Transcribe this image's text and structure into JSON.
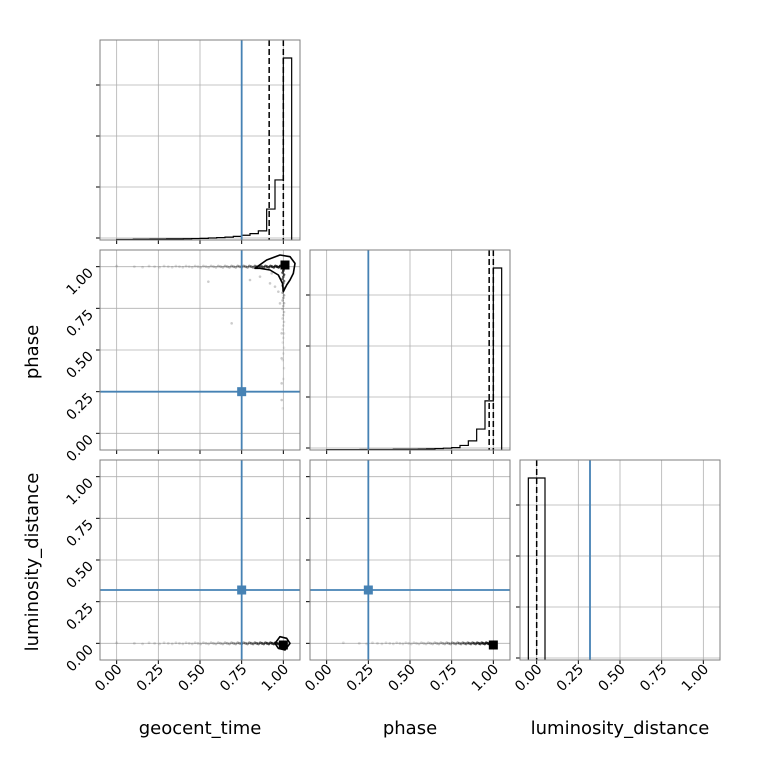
{
  "chart_data": {
    "type": "corner",
    "parameters": [
      "geocent_time",
      "phase",
      "luminosity_distance"
    ],
    "axis_labels": {
      "x": [
        "geocent_time",
        "phase",
        "luminosity_distance"
      ],
      "y": [
        "",
        "phase",
        "luminosity_distance"
      ]
    },
    "range": [
      -0.1,
      1.1
    ],
    "ticks": [
      0.0,
      0.25,
      0.5,
      0.75,
      1.0
    ],
    "tick_labels": [
      "0.00",
      "0.25",
      "0.50",
      "0.75",
      "1.00"
    ],
    "truths": {
      "geocent_time": 0.75,
      "phase": 0.25,
      "luminosity_distance": 0.32
    },
    "truth_color": "#4682b4",
    "sample_color": "#000000",
    "grid": true,
    "histograms": {
      "geocent_time": {
        "bin_edges": [
          0.0,
          0.05,
          0.1,
          0.15,
          0.2,
          0.25,
          0.3,
          0.35,
          0.4,
          0.45,
          0.5,
          0.55,
          0.6,
          0.65,
          0.7,
          0.75,
          0.8,
          0.85,
          0.9,
          0.95,
          1.0,
          1.05
        ],
        "values": [
          0.003,
          0.003,
          0.004,
          0.004,
          0.005,
          0.005,
          0.006,
          0.006,
          0.007,
          0.008,
          0.009,
          0.011,
          0.013,
          0.016,
          0.02,
          0.026,
          0.035,
          0.05,
          0.17,
          0.33,
          1.0
        ],
        "quantiles": [
          0.915,
          1.0
        ]
      },
      "phase": {
        "bin_edges": [
          0.0,
          0.05,
          0.1,
          0.15,
          0.2,
          0.25,
          0.3,
          0.35,
          0.4,
          0.45,
          0.5,
          0.55,
          0.6,
          0.65,
          0.7,
          0.75,
          0.8,
          0.85,
          0.9,
          0.95,
          1.0,
          1.05
        ],
        "values": [
          0.002,
          0.002,
          0.002,
          0.002,
          0.003,
          0.003,
          0.003,
          0.003,
          0.004,
          0.004,
          0.004,
          0.005,
          0.006,
          0.008,
          0.01,
          0.013,
          0.025,
          0.05,
          0.115,
          0.27,
          1.0
        ],
        "quantiles": [
          0.975,
          1.0
        ]
      },
      "luminosity_distance": {
        "bin_edges": [
          -0.05,
          0.0,
          0.05
        ],
        "values": [
          1.0,
          1.0
        ],
        "quantiles": [
          0.0
        ]
      }
    },
    "scatter": {
      "phase_vs_geocent_time": {
        "dense_line": {
          "y": 1.0,
          "x_from": 0.0,
          "x_to": 1.0
        },
        "dense_column": {
          "x": 1.0,
          "y_from": 0.15,
          "y_to": 1.0
        },
        "scattered_points": [
          [
            0.55,
            0.91
          ],
          [
            0.69,
            0.66
          ],
          [
            0.8,
            0.92
          ],
          [
            0.86,
            0.94
          ],
          [
            0.92,
            0.9
          ],
          [
            0.95,
            0.88
          ],
          [
            0.97,
            0.85
          ],
          [
            0.99,
            0.6
          ],
          [
            0.99,
            0.45
          ],
          [
            0.99,
            0.3
          ],
          [
            0.99,
            0.2
          ],
          [
            0.98,
            0.78
          ],
          [
            0.93,
            0.96
          ]
        ],
        "peak": [
          1.01,
          1.01
        ],
        "contour": [
          [
            0.83,
            0.99
          ],
          [
            0.9,
            1.04
          ],
          [
            0.98,
            1.07
          ],
          [
            1.04,
            1.06
          ],
          [
            1.07,
            1.02
          ],
          [
            1.06,
            0.96
          ],
          [
            1.04,
            0.92
          ],
          [
            1.02,
            0.89
          ],
          [
            1.0,
            0.85
          ],
          [
            0.995,
            0.9
          ],
          [
            0.97,
            0.95
          ],
          [
            0.92,
            0.98
          ],
          [
            0.86,
            0.99
          ]
        ]
      },
      "luminosity_distance_vs_geocent_time": {
        "dense_line": {
          "y": 0.0,
          "x_from": 0.0,
          "x_to": 1.0
        },
        "peak": [
          1.0,
          -0.01
        ],
        "contour": [
          [
            0.95,
            0.0
          ],
          [
            0.98,
            0.04
          ],
          [
            1.02,
            0.03
          ],
          [
            1.04,
            0.0
          ],
          [
            1.01,
            -0.04
          ],
          [
            0.97,
            -0.03
          ]
        ]
      },
      "luminosity_distance_vs_phase": {
        "dense_line": {
          "y": 0.0,
          "x_from": 0.1,
          "x_to": 1.0
        },
        "peak": [
          1.0,
          -0.01
        ]
      }
    }
  }
}
